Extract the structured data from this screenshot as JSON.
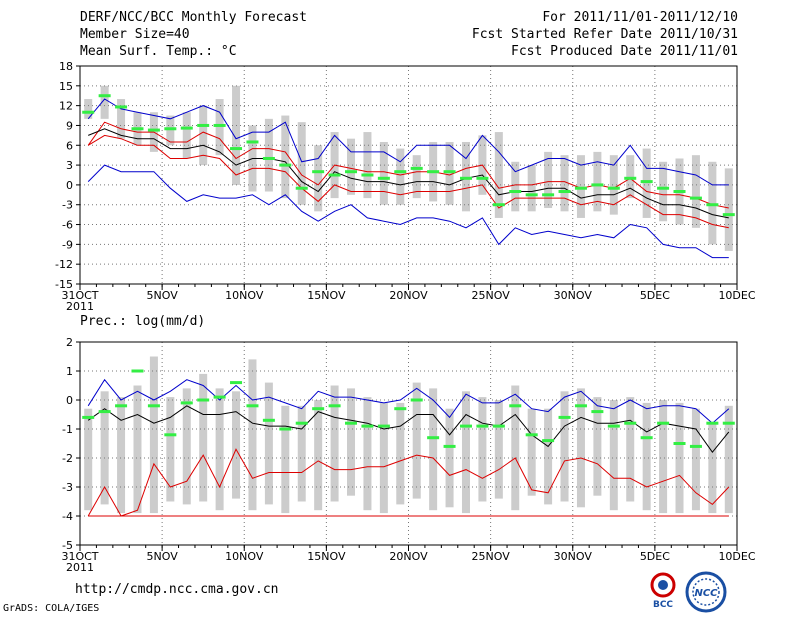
{
  "header": {
    "line1": "DERF/NCC/BCC Monthly Forecast",
    "line2": "Member Size=40",
    "line3": "Mean Surf. Temp.: °C",
    "r1": "For 2011/11/01-2011/12/10",
    "r2": "Fcst Started Refer Date 2011/10/31",
    "r3": "Fcst Produced Date 2011/11/01"
  },
  "footer": {
    "url": "http://cmdp.ncc.cma.gov.cn",
    "grads": "GrADS: COLA/IGES",
    "logo1_text": "BCC",
    "logo2_text": "NCC"
  },
  "chart_data": [
    {
      "type": "line",
      "title": "Mean Surf. Temp.: °C",
      "ylim": [
        -15,
        18
      ],
      "yticks": [
        "18",
        "15",
        "12",
        "9",
        "6",
        "3",
        "0",
        "-3",
        "-6",
        "-9",
        "-12",
        "-15"
      ],
      "xticks": [
        "31OCT",
        "5NOV",
        "10NOV",
        "15NOV",
        "20NOV",
        "25NOV",
        "30NOV",
        "5DEC",
        "10DEC"
      ],
      "xsub": "2011",
      "series": [
        {
          "name": "ensemble max",
          "color": "#0000cc",
          "values": [
            10,
            13,
            11.5,
            11,
            10.5,
            10,
            11,
            12,
            11,
            7,
            8,
            8,
            9.5,
            3.5,
            4,
            7.5,
            5,
            5,
            5,
            3.5,
            6,
            6,
            6,
            4,
            7.5,
            5,
            2,
            3,
            4,
            4,
            3,
            3.5,
            3,
            6,
            2.5,
            2.5,
            2,
            1.5,
            0,
            0
          ]
        },
        {
          "name": "upper",
          "color": "#dd0000",
          "values": [
            6,
            9.5,
            8.5,
            8,
            8,
            6.5,
            6.5,
            8,
            7,
            4,
            5.5,
            5.5,
            5,
            1.5,
            0,
            3,
            2.5,
            2,
            2,
            1.5,
            2,
            2,
            1.5,
            2.5,
            3,
            -0.5,
            0,
            0,
            0.5,
            0.5,
            -0.5,
            0,
            -0.5,
            1,
            -1,
            -1.5,
            -1.5,
            -2,
            -3,
            -3.5
          ]
        },
        {
          "name": "ensemble mean",
          "color": "#000000",
          "values": [
            7.5,
            8.5,
            7.5,
            7,
            7,
            5.5,
            5.5,
            6,
            5,
            3,
            4,
            4,
            3.5,
            0.5,
            -1,
            2,
            1,
            0.5,
            0.5,
            0,
            0.5,
            0.5,
            0,
            1,
            1.5,
            -1.5,
            -1,
            -1,
            -0.5,
            -0.5,
            -2,
            -1.5,
            -1.5,
            -0.5,
            -2,
            -3,
            -3,
            -3.5,
            -4.5,
            -5
          ]
        },
        {
          "name": "lower",
          "color": "#dd0000",
          "values": [
            6,
            7.5,
            7,
            6,
            6,
            4,
            4,
            4.5,
            4,
            1.5,
            2.5,
            2.5,
            2,
            -0.5,
            -2.5,
            0,
            -1,
            -1,
            -1,
            -1.5,
            -1,
            -1,
            -1,
            -0.5,
            0,
            -3.5,
            -2,
            -2,
            -2,
            -2,
            -3,
            -2.5,
            -3,
            -1.5,
            -3,
            -4.5,
            -4.5,
            -5,
            -6,
            -6.5
          ]
        },
        {
          "name": "ensemble min",
          "color": "#0000cc",
          "values": [
            0.5,
            3,
            2,
            2,
            2,
            -0.5,
            -2.5,
            -1.5,
            -2,
            -2,
            -1.5,
            -3,
            -1.5,
            -4,
            -5.5,
            -4,
            -3,
            -5,
            -5.5,
            -6,
            -5,
            -5,
            -5.5,
            -6.5,
            -5,
            -9,
            -6.5,
            -7.5,
            -7,
            -7.5,
            -8,
            -7.5,
            -8,
            -6,
            -6.5,
            -9,
            -9.5,
            -9.5,
            -11,
            -11
          ]
        }
      ],
      "box_high": [
        13,
        15,
        13,
        11,
        11,
        10.5,
        11,
        12,
        13,
        15,
        9,
        10,
        10.5,
        9.5,
        6,
        8,
        7,
        8,
        6.5,
        5.5,
        4.5,
        6.5,
        6.5,
        6.5,
        7.5,
        8,
        3.5,
        3,
        5,
        4.5,
        4.5,
        5,
        4.5,
        4.5,
        5.5,
        3.5,
        4,
        4.5,
        3.5,
        2.5
      ],
      "box_low": [
        10,
        10,
        7,
        6,
        5,
        6,
        4,
        3,
        4.5,
        0,
        -1,
        -1,
        -2,
        -3,
        -4,
        -2,
        -1.5,
        -2,
        -3,
        -3,
        -2,
        -2.5,
        -3,
        -4,
        -1.5,
        -5,
        -4,
        -4,
        -3.5,
        -4,
        -5,
        -4,
        -4.5,
        -2,
        -5,
        -5.5,
        -6,
        -6.5,
        -9,
        -10
      ],
      "observed": [
        11,
        13.5,
        11.8,
        8.5,
        8.3,
        8.5,
        8.6,
        9,
        9,
        5.5,
        6.5,
        4,
        3,
        -0.5,
        2,
        1.5,
        2,
        1.5,
        1,
        2,
        2.5,
        2,
        2,
        1,
        1,
        -3,
        -1,
        -1.5,
        -1.5,
        -1,
        -0.5,
        0,
        -0.5,
        1,
        0.5,
        -0.5,
        -1,
        -2,
        -3,
        -4.5
      ]
    },
    {
      "type": "line",
      "title": "Prec.: log(mm/d)",
      "ylim": [
        -5,
        2
      ],
      "yticks": [
        "2",
        "1",
        "0",
        "-1",
        "-2",
        "-3",
        "-4",
        "-5"
      ],
      "xticks": [
        "31OCT",
        "5NOV",
        "10NOV",
        "15NOV",
        "20NOV",
        "25NOV",
        "30NOV",
        "5DEC",
        "10DEC"
      ],
      "xsub": "2011",
      "series": [
        {
          "name": "ensemble max",
          "color": "#0000cc",
          "values": [
            -0.2,
            0.7,
            0,
            0.3,
            0,
            0.3,
            0.7,
            0.5,
            0,
            0.5,
            0,
            0.1,
            -0.1,
            -0.3,
            0.3,
            0.1,
            0.1,
            0,
            -0.1,
            0,
            0.4,
            0,
            -0.6,
            0.2,
            -0.1,
            -0.1,
            0.2,
            -0.3,
            -0.4,
            0.1,
            0.3,
            -0.2,
            -0.3,
            0,
            -0.3,
            -0.2,
            -0.2,
            -0.3,
            -0.8,
            -0.3
          ]
        },
        {
          "name": "ensemble mean",
          "color": "#000000",
          "values": [
            -0.7,
            -0.3,
            -0.7,
            -0.5,
            -0.8,
            -0.6,
            -0.2,
            -0.5,
            -0.5,
            -0.4,
            -0.8,
            -0.9,
            -0.9,
            -1,
            -0.4,
            -0.6,
            -0.7,
            -0.8,
            -1,
            -0.9,
            -0.5,
            -0.5,
            -1.2,
            -0.5,
            -0.8,
            -0.9,
            -0.5,
            -1.2,
            -1.6,
            -0.9,
            -0.6,
            -0.8,
            -0.8,
            -0.7,
            -1.1,
            -0.8,
            -0.9,
            -1,
            -1.8,
            -1.1
          ]
        },
        {
          "name": "lower",
          "color": "#dd0000",
          "values": [
            -4,
            -3,
            -4,
            -3.8,
            -2.2,
            -3,
            -2.8,
            -1.9,
            -3,
            -1.7,
            -2.7,
            -2.5,
            -2.5,
            -2.5,
            -2.1,
            -2.4,
            -2.4,
            -2.3,
            -2.3,
            -2.1,
            -1.9,
            -2,
            -2.6,
            -2.4,
            -2.7,
            -2.4,
            -2,
            -3.1,
            -3.2,
            -2.1,
            -2,
            -2.2,
            -2.7,
            -2.7,
            -3,
            -2.8,
            -2.6,
            -3.2,
            -3.6,
            -3
          ]
        },
        {
          "name": "ensemble min",
          "color": "#dd0000",
          "values": [
            -4,
            -4,
            -4,
            -4,
            -4,
            -4,
            -4,
            -4,
            -4,
            -4,
            -4,
            -4,
            -4,
            -4,
            -4,
            -4,
            -4,
            -4,
            -4,
            -4,
            -4,
            -4,
            -4,
            -4,
            -4,
            -4,
            -4,
            -4,
            -4,
            -4,
            -4,
            -4,
            -4,
            -4,
            -4,
            -4,
            -4,
            -4,
            -4,
            -4
          ]
        }
      ],
      "box_high": [
        -0.3,
        0.3,
        0.1,
        0.5,
        1.5,
        0.1,
        0.4,
        0.9,
        0.4,
        0.3,
        1.4,
        0.6,
        -0.2,
        -0.2,
        0,
        0.5,
        0.4,
        0.1,
        -0.1,
        -0.1,
        0.6,
        0.4,
        -0.3,
        0.3,
        0.1,
        0,
        0.5,
        -0.3,
        -0.3,
        0.3,
        0.4,
        0.1,
        0,
        0.1,
        -0.1,
        0,
        -0.1,
        -0.3,
        -0.8,
        -0.2
      ],
      "box_low": [
        -3.8,
        -3.6,
        -3.9,
        -3.9,
        -3.9,
        -3.5,
        -3.6,
        -3.5,
        -3.8,
        -3.4,
        -3.8,
        -3.6,
        -3.9,
        -3.5,
        -3.8,
        -3.5,
        -3.3,
        -3.8,
        -3.9,
        -3.6,
        -3.4,
        -3.8,
        -3.7,
        -3.9,
        -3.5,
        -3.4,
        -3.8,
        -3.3,
        -3.6,
        -3.5,
        -3.7,
        -3.3,
        -3.8,
        -3.5,
        -3.8,
        -3.9,
        -3.9,
        -3.8,
        -3.9,
        -3.9
      ],
      "observed": [
        -0.6,
        -0.4,
        -0.2,
        1,
        -0.2,
        -1.2,
        -0.1,
        0,
        0.1,
        0.6,
        -0.2,
        -0.7,
        -1,
        -0.8,
        -0.3,
        -0.2,
        -0.8,
        -0.9,
        -0.9,
        -0.3,
        0,
        -1.3,
        -1.6,
        -0.9,
        -0.9,
        -0.9,
        -0.2,
        -1.2,
        -1.4,
        -0.6,
        -0.2,
        -0.4,
        -0.9,
        -0.8,
        -1.3,
        -0.8,
        -1.5,
        -1.6,
        -0.8,
        -0.8
      ]
    }
  ]
}
